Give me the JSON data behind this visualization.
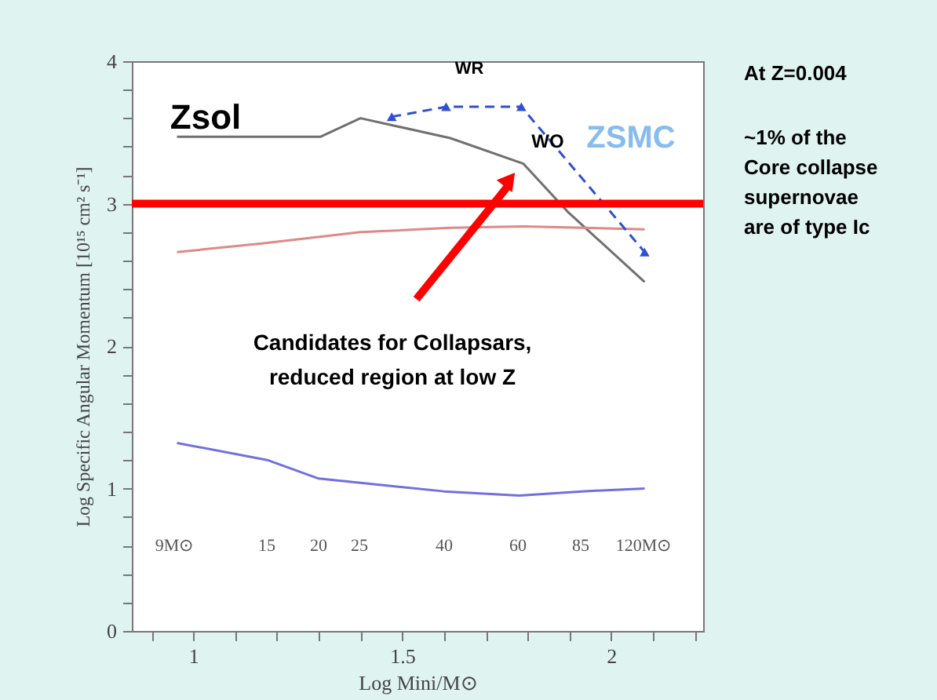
{
  "chart_data": {
    "type": "line",
    "xlabel": "Log Mini/M⊙",
    "ylabel": "Log Specific Angular Momentum [10¹⁵ cm² s⁻¹]",
    "xlim": [
      0.853,
      2.22
    ],
    "ylim": [
      0,
      4
    ],
    "xticks": [
      {
        "value": 0.9,
        "label": null
      },
      1,
      {
        "value": 1.1,
        "label": null
      },
      {
        "value": 1.2,
        "label": null
      },
      {
        "value": 1.3,
        "label": null
      },
      {
        "value": 1.4,
        "label": null
      },
      1.5,
      {
        "value": 1.6,
        "label": null
      },
      {
        "value": 1.7,
        "label": null
      },
      {
        "value": 1.8,
        "label": null
      },
      {
        "value": 1.9,
        "label": null
      },
      2,
      {
        "value": 2.1,
        "label": null
      },
      {
        "value": 2.2,
        "label": null
      }
    ],
    "yticks": [
      0,
      {
        "value": 0.2,
        "label": null
      },
      {
        "value": 0.4,
        "label": null
      },
      {
        "value": 0.6,
        "label": null
      },
      {
        "value": 0.8,
        "label": null
      },
      1,
      {
        "value": 1.2,
        "label": null
      },
      {
        "value": 1.4,
        "label": null
      },
      {
        "value": 1.6,
        "label": null
      },
      {
        "value": 1.8,
        "label": null
      },
      2,
      {
        "value": 2.2,
        "label": null
      },
      {
        "value": 2.4,
        "label": null
      },
      {
        "value": 2.6,
        "label": null
      },
      {
        "value": 2.8,
        "label": null
      },
      3,
      {
        "value": 3.2,
        "label": null
      },
      {
        "value": 3.4,
        "label": null
      },
      {
        "value": 3.6,
        "label": null
      },
      {
        "value": 3.8,
        "label": null
      },
      4
    ],
    "grid": false,
    "series": [
      {
        "color": "#707070",
        "x": [
          0.961,
          1.305,
          1.4,
          1.615,
          1.79,
          1.897,
          2.08
        ],
        "values": [
          3.47,
          3.47,
          3.6,
          3.46,
          3.28,
          2.94,
          2.45
        ]
      },
      {
        "color": "#e08888",
        "x": [
          0.961,
          1.164,
          1.4,
          1.615,
          1.79,
          2.08
        ],
        "values": [
          2.66,
          2.72,
          2.8,
          2.83,
          2.84,
          2.82
        ]
      },
      {
        "color": "#7070e0",
        "x": [
          0.961,
          1.177,
          1.3,
          1.4,
          1.6,
          1.78,
          1.93,
          2.08
        ],
        "values": [
          1.32,
          1.2,
          1.07,
          1.04,
          0.98,
          0.95,
          0.98,
          1.0
        ]
      },
      {
        "color": "#3050d0",
        "x": [
          1.475,
          1.605,
          1.785,
          2.08
        ],
        "values": [
          3.61,
          3.68,
          3.68,
          2.66
        ],
        "marker": "triangle",
        "line_style": "dashed"
      }
    ],
    "ref_lines": [
      {
        "axis": "y",
        "value": 3.0,
        "color": "#ff0000"
      }
    ],
    "annotations": [
      "Zsol",
      "ZSMC",
      "WR",
      "WO",
      "9M⊙",
      "15",
      "20",
      "25",
      "40",
      "60",
      "85",
      "120M⊙",
      "Candidates for Collapsars,",
      "reduced region at low Z",
      "At Z=0.004",
      "~1% of the",
      "Core collapse",
      "supernovae",
      "are of type Ic"
    ]
  }
}
